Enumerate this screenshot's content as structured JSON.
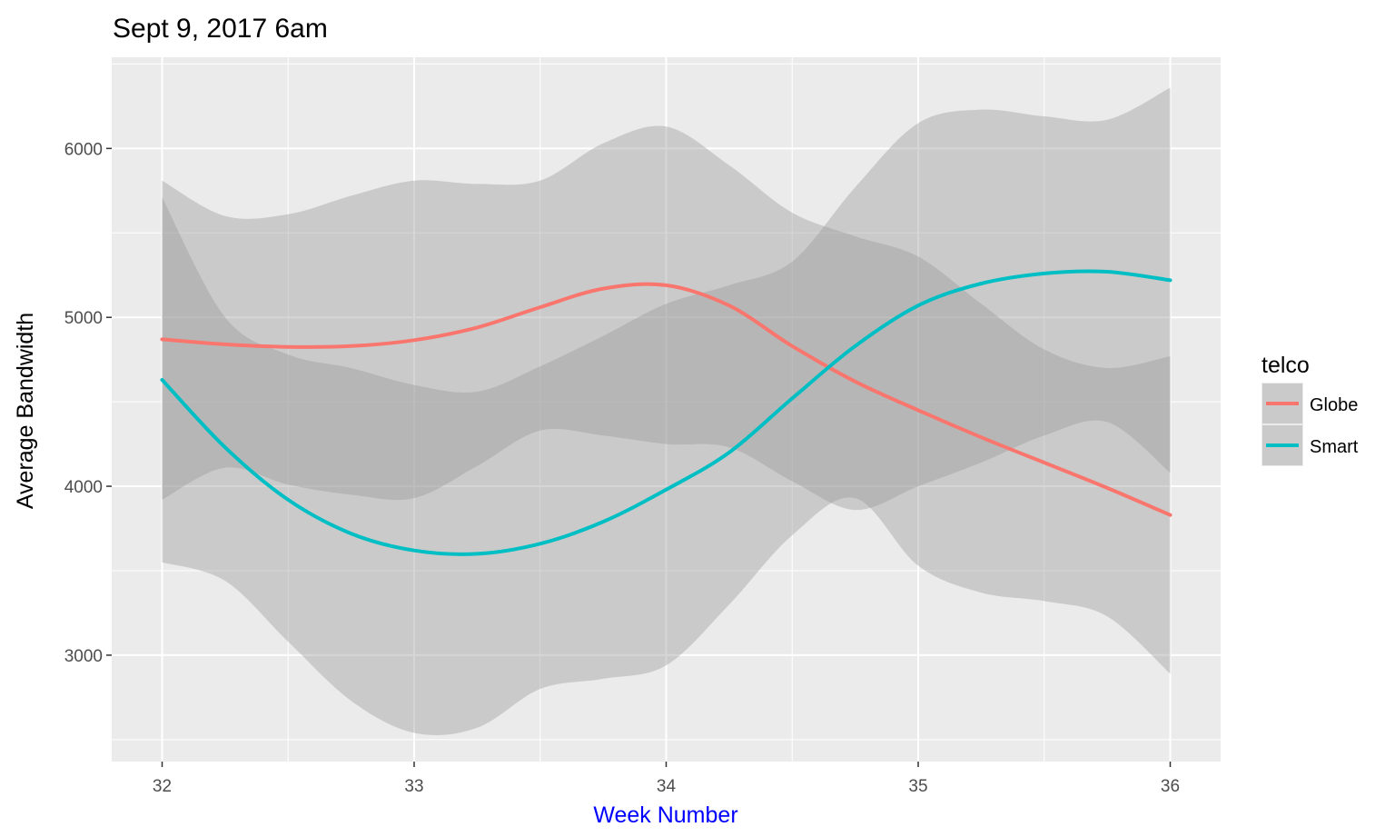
{
  "chart_data": {
    "type": "line",
    "title": "Sept 9, 2017 6am",
    "xlabel": "Week Number",
    "ylabel": "Average Bandwidth",
    "xlim": [
      31.8,
      36.2
    ],
    "ylim": [
      2370,
      6540
    ],
    "x_ticks": [
      32,
      33,
      34,
      35,
      36
    ],
    "y_ticks": [
      3000,
      4000,
      5000,
      6000
    ],
    "grid": true,
    "legend": {
      "title": "telco",
      "position": "right"
    },
    "colors": {
      "panel": "#ebebeb",
      "grid": "#ffffff",
      "ribbon": "#999999",
      "xlabel": "#0000ff"
    },
    "series": [
      {
        "name": "Globe",
        "color": "#f8766d",
        "x": [
          32,
          32.25,
          32.5,
          32.75,
          33,
          33.25,
          33.5,
          33.75,
          34,
          34.25,
          34.5,
          34.75,
          35,
          35.25,
          35.5,
          35.75,
          36
        ],
        "y": [
          4870,
          4840,
          4825,
          4830,
          4865,
          4940,
          5060,
          5170,
          5190,
          5070,
          4830,
          4620,
          4450,
          4290,
          4140,
          3990,
          3830
        ],
        "lower": [
          3920,
          4110,
          4010,
          3950,
          3930,
          4120,
          4330,
          4300,
          4250,
          4230,
          4030,
          3860,
          4000,
          4140,
          4300,
          4380,
          4080
        ],
        "upper": [
          5810,
          5600,
          5610,
          5720,
          5810,
          5790,
          5810,
          6030,
          6130,
          5900,
          5620,
          5480,
          5360,
          5080,
          4810,
          4700,
          4770
        ]
      },
      {
        "name": "Smart",
        "color": "#00bfc4",
        "x": [
          32,
          32.25,
          32.5,
          32.75,
          33,
          33.25,
          33.5,
          33.75,
          34,
          34.25,
          34.5,
          34.75,
          35,
          35.25,
          35.5,
          35.75,
          36
        ],
        "y": [
          4630,
          4230,
          3920,
          3720,
          3620,
          3600,
          3660,
          3790,
          3980,
          4200,
          4520,
          4830,
          5070,
          5200,
          5260,
          5270,
          5220
        ],
        "lower": [
          3550,
          3440,
          3080,
          2730,
          2540,
          2570,
          2800,
          2860,
          2940,
          3300,
          3710,
          3930,
          3530,
          3370,
          3320,
          3230,
          2890
        ],
        "upper": [
          5710,
          5000,
          4780,
          4700,
          4600,
          4560,
          4710,
          4890,
          5080,
          5190,
          5330,
          5770,
          6150,
          6230,
          6190,
          6170,
          6360
        ]
      }
    ]
  }
}
